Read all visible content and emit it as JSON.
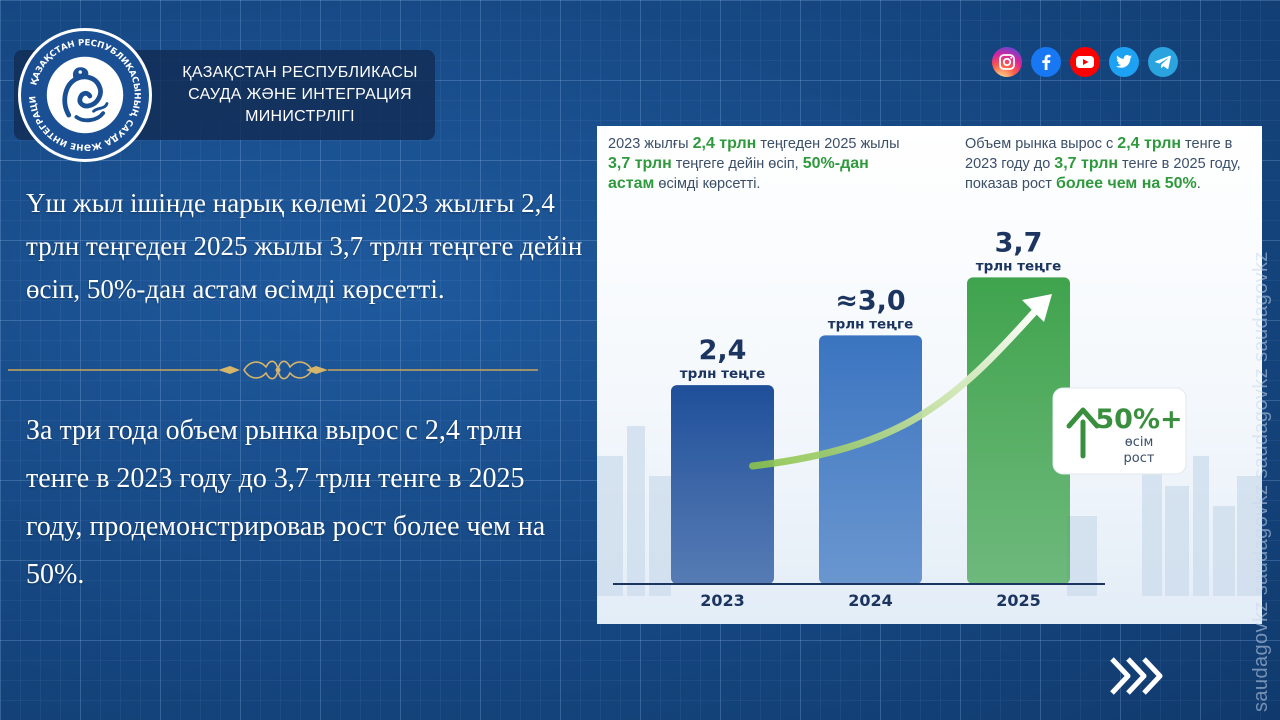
{
  "header": {
    "ministry_lines": [
      "ҚАЗАҚСТАН РЕСПУБЛИКАСЫ",
      "САУДА ЖӘНЕ ИНТЕГРАЦИЯ",
      "МИНИСТРЛІГІ"
    ],
    "emblem_text": "ҚАЗАҚСТАН РЕСПУБЛИКАСЫНЫҢ САУДА ЖӘНЕ ИНТЕГРАЦИЯ МИНИСТРЛІГІ"
  },
  "social": [
    {
      "name": "instagram-icon",
      "color": "#d62976"
    },
    {
      "name": "facebook-icon",
      "color": "#1877f2"
    },
    {
      "name": "youtube-icon",
      "color": "#ff0000"
    },
    {
      "name": "twitter-icon",
      "color": "#1da1f2"
    },
    {
      "name": "telegram-icon",
      "color": "#2aa3df"
    }
  ],
  "text": {
    "kz": "Үш жыл ішінде нарық көлемі 2023 жылғы 2,4 трлн теңгеден 2025 жылы 3,7 трлн теңгеге дейін өсіп, 50%-дан астам өсімді көрсетті.",
    "ru": "За три года объем рынка вырос с 2,4 трлн тенге в 2023 году до 3,7 трлн тенге в 2025 году, продемонстрировав рост более чем на 50%."
  },
  "chart_caption": {
    "kz": [
      "2023 жылғы ",
      "2,4 трлн",
      " теңгеден 2025 жылы ",
      "3,7 трлн",
      " теңгеге дейін өсіп, ",
      "50%-дан астам",
      " өсімді көрсетті."
    ],
    "ru": [
      "Объем рынка вырос с ",
      "2,4 трлн",
      " тенге в 2023 году до ",
      "3,7 трлн",
      " тенге в 2025 году, показав рост ",
      "более чем на 50%",
      "."
    ]
  },
  "chart_data": {
    "type": "bar",
    "categories": [
      "2023",
      "2024",
      "2025"
    ],
    "values": [
      2.4,
      3.0,
      3.7
    ],
    "value_labels": [
      "2,4",
      "≈3,0",
      "3,7"
    ],
    "unit_label": "трлн теңге",
    "colors": [
      "#1f4f9a",
      "#3a74c0",
      "#3fa34d"
    ],
    "growth_badge": {
      "value": "50%+",
      "line1": "өсім",
      "line2": "рост"
    },
    "ylim": [
      0,
      4.2
    ]
  },
  "watermark": "saudagovkz saudagovkz saudagovkz saudagovkz"
}
